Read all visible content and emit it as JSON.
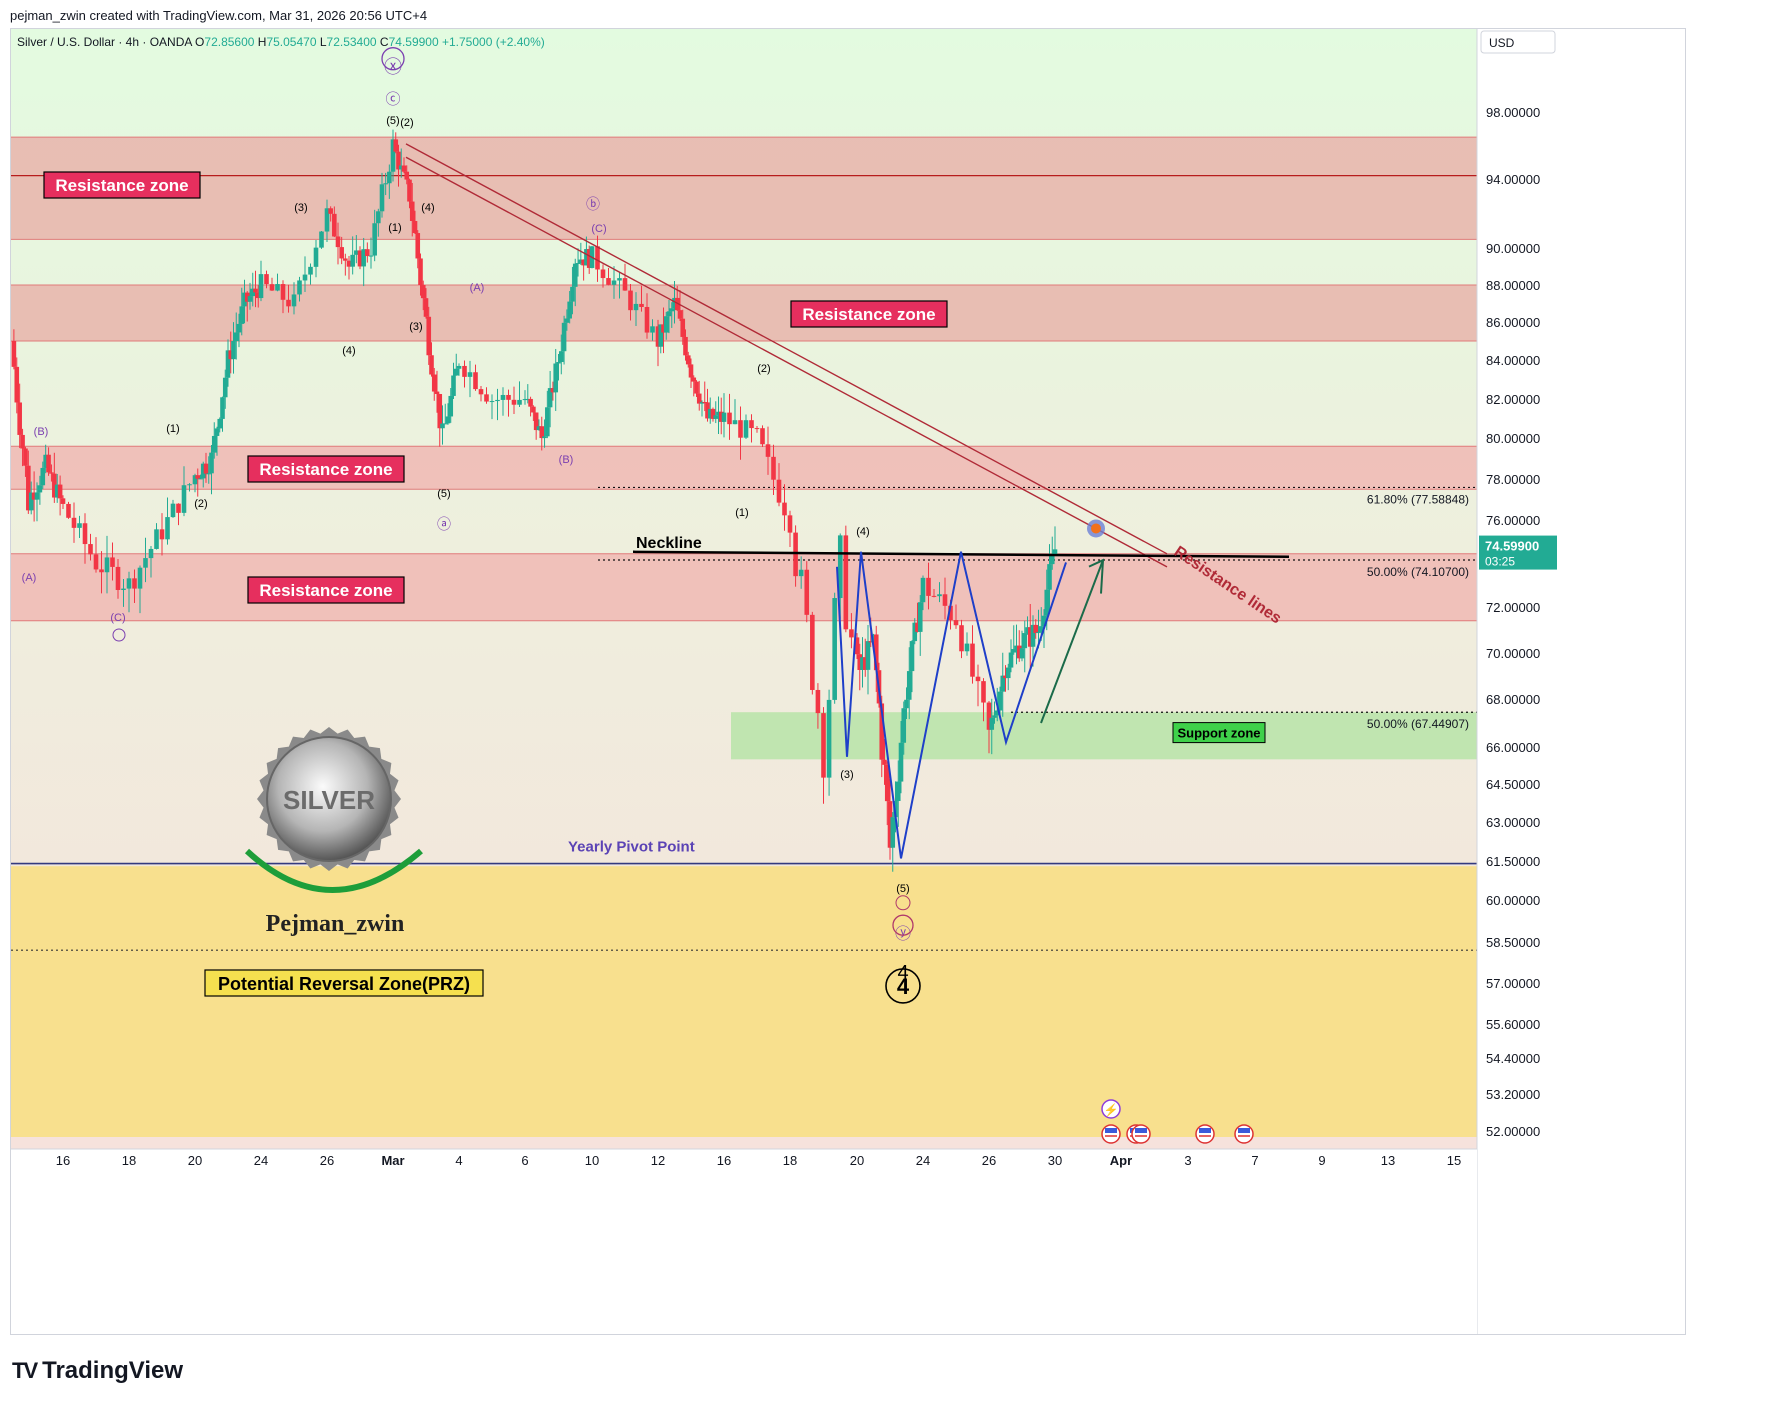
{
  "header": {
    "attribution": "pejman_zwin created with TradingView.com, Mar 31, 2026 20:56 UTC+4"
  },
  "legend": {
    "symbol": "Silver / U.S. Dollar · 4h · OANDA",
    "o_label": "O",
    "o": "72.85600",
    "h_label": "H",
    "h": "75.05470",
    "l_label": "L",
    "l": "72.53400",
    "c_label": "C",
    "c": "74.59900",
    "change": "+1.75000 (+2.40%)"
  },
  "currency": "USD",
  "last_price": {
    "value": "74.59900",
    "countdown": "03:25"
  },
  "colors": {
    "up": "#22ab94",
    "down": "#f23645",
    "resistance": "#e8b4ac",
    "support": "#b7e4a8",
    "prz": "#f8e08e",
    "label_bg": "#e62f5e",
    "neckline": "#000000",
    "trend": "#b02a37",
    "pattern": "#1e3fc9",
    "wave_purple": "#7b3fb0"
  },
  "chart_data": {
    "type": "candlestick",
    "title": "Silver / U.S. Dollar · 4h · OANDA",
    "y_ticks": [
      "98.00000",
      "94.00000",
      "90.00000",
      "88.00000",
      "86.00000",
      "84.00000",
      "82.00000",
      "80.00000",
      "78.00000",
      "76.00000",
      "72.00000",
      "70.00000",
      "68.00000",
      "66.00000",
      "64.50000",
      "63.00000",
      "61.50000",
      "60.00000",
      "58.50000",
      "57.00000",
      "55.60000",
      "54.40000",
      "53.20000",
      "52.00000"
    ],
    "x_ticks": [
      "16",
      "18",
      "20",
      "24",
      "26",
      "Mar",
      "4",
      "6",
      "10",
      "12",
      "16",
      "18",
      "20",
      "24",
      "26",
      "30",
      "Apr",
      "3",
      "7",
      "9",
      "13",
      "15"
    ],
    "y_scale": "non-linear",
    "ylim": [
      51.8,
      101.0
    ],
    "anchors": [
      [
        "Feb 13",
        85.0
      ],
      [
        "Feb 14",
        77.0
      ],
      [
        "Feb 15",
        78.6
      ],
      [
        "Feb 16",
        76.6
      ],
      [
        "Feb 17",
        74.0
      ],
      [
        "Feb 18",
        73.0
      ],
      [
        "Feb 19",
        75.5
      ],
      [
        "Feb 20",
        78.2
      ],
      [
        "Feb 21",
        79.0
      ],
      [
        "Feb 22",
        84.0
      ],
      [
        "Feb 23",
        87.0
      ],
      [
        "Feb 24",
        88.0
      ],
      [
        "Feb 25",
        87.0
      ],
      [
        "Feb 26",
        92.0
      ],
      [
        "Feb 27",
        89.0
      ],
      [
        "Feb 28",
        90.0
      ],
      [
        "Mar 1",
        96.0
      ],
      [
        "Mar 2",
        93.0
      ],
      [
        "Mar 3",
        86.0
      ],
      [
        "Mar 4",
        80.0
      ],
      [
        "Mar 5",
        84.0
      ],
      [
        "Mar 6",
        82.0
      ],
      [
        "Mar 7",
        82.0
      ],
      [
        "Mar 8",
        80.0
      ],
      [
        "Mar 9",
        84.0
      ],
      [
        "Mar 10",
        89.5
      ],
      [
        "Mar 11",
        89.5
      ],
      [
        "Mar 12",
        87.5
      ],
      [
        "Mar 13",
        85.0
      ],
      [
        "Mar 14",
        87.0
      ],
      [
        "Mar 15",
        83.5
      ],
      [
        "Mar 16",
        81.0
      ],
      [
        "Mar 17",
        81.0
      ],
      [
        "Mar 18",
        80.0
      ],
      [
        "Mar 19",
        76.0
      ],
      [
        "Mar 20",
        66.0
      ],
      [
        "Mar 20.5",
        73.5
      ],
      [
        "Mar 21",
        69.0
      ],
      [
        "Mar 22",
        70.5
      ],
      [
        "Mar 23",
        62.0
      ],
      [
        "Mar 24",
        68.5
      ],
      [
        "Mar 25",
        73.0
      ],
      [
        "Mar 26",
        71.5
      ],
      [
        "Mar 27",
        66.5
      ],
      [
        "Mar 28",
        69.5
      ],
      [
        "Mar 29",
        70.5
      ],
      [
        "Mar 30",
        71.0
      ],
      [
        "Mar 31",
        74.6
      ]
    ],
    "zones": [
      {
        "label": "Resistance zone",
        "from": 90.5,
        "to": 96.5
      },
      {
        "label": "Resistance zone",
        "from": 85.0,
        "to": 88.0
      },
      {
        "label": "Resistance zone",
        "from": 77.5,
        "to": 79.6
      },
      {
        "label": "Resistance zone",
        "from": 71.4,
        "to": 74.4
      },
      {
        "label": "Support zone",
        "from": 65.5,
        "to": 67.45
      },
      {
        "label": "Potential Reversal Zone(PRZ)",
        "from": 51.8,
        "to": 61.3
      }
    ],
    "levels": [
      {
        "label": "61.80% (77.58848)",
        "value": 77.58848
      },
      {
        "label": "50.00% (74.10700)",
        "value": 74.107
      },
      {
        "label": "50.00% (67.44907)",
        "value": 67.44907
      }
    ],
    "annotations": {
      "neckline": "Neckline",
      "resistance_lines": "Resistance lines",
      "pivot": "Yearly Pivot Point",
      "logo_text": "SILVER",
      "author": "Pejman_zwin",
      "waves": [
        "ⓧ",
        "ⓒ",
        "(5)",
        "(2)",
        "(3)",
        "(4)",
        "(1)",
        "(3)",
        "(4)",
        "(A)",
        "(5)",
        "ⓐ",
        "(B)",
        "ⓑ",
        "(C)",
        "(2)",
        "(1)",
        "(4)",
        "(3)",
        "(5)",
        "ⓨ",
        "4",
        "(A)",
        "(B)",
        "(C)",
        "(1)",
        "(2)"
      ],
      "wave_big": "4"
    }
  },
  "footer": {
    "brand": "TradingView",
    "brand_mark": "TV"
  }
}
